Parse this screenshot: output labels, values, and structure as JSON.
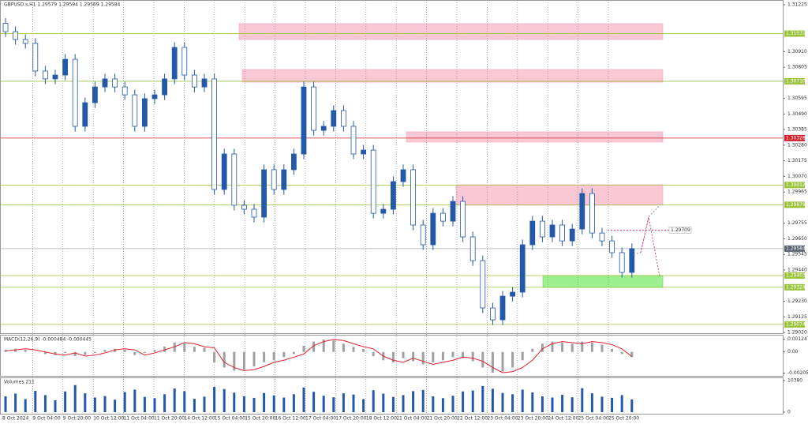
{
  "chart_data": {
    "type": "candlestick",
    "title": "GBPUSD.s,H1 1.29579 1.29594 1.29569 1.29584",
    "open": [
      1.311,
      1.31044,
      1.30991,
      1.30965,
      1.30779,
      1.30726,
      1.30752,
      1.30858,
      1.30407,
      1.30566,
      1.30672,
      1.30726,
      1.30672,
      1.30619,
      1.30407,
      1.30593,
      1.30619,
      1.30726,
      1.30938,
      1.30752,
      1.30672,
      1.30726,
      1.29982,
      1.30221,
      1.29876,
      1.29849,
      1.29796,
      1.30115,
      1.29982,
      1.30115,
      1.30221,
      1.30672,
      1.3038,
      1.30407,
      1.30513,
      1.30407,
      1.30221,
      1.30247,
      1.29822,
      1.29849,
      1.30035,
      1.30115,
      1.29743,
      1.2961,
      1.29822,
      1.29769,
      1.29902,
      1.29663,
      1.29503,
      1.29185,
      1.29105,
      1.29264,
      1.29291,
      1.2961,
      1.29769,
      1.29663,
      1.29743,
      1.29636,
      1.29716,
      1.29955,
      1.29689,
      1.29636,
      1.29557,
      1.29424
    ],
    "high": [
      1.31135,
      1.31079,
      1.31026,
      1.31,
      1.30814,
      1.30787,
      1.30893,
      1.30893,
      1.30601,
      1.30707,
      1.30761,
      1.30761,
      1.30707,
      1.30654,
      1.30628,
      1.30654,
      1.30761,
      1.30973,
      1.30973,
      1.30787,
      1.30761,
      1.30761,
      1.30256,
      1.30256,
      1.29911,
      1.29884,
      1.3015,
      1.3015,
      1.3015,
      1.30256,
      1.30707,
      1.30707,
      1.30442,
      1.30548,
      1.30548,
      1.30442,
      1.30282,
      1.30282,
      1.29884,
      1.3007,
      1.3015,
      1.3015,
      1.29778,
      1.29857,
      1.29857,
      1.29937,
      1.29937,
      1.29698,
      1.29538,
      1.2922,
      1.29299,
      1.29326,
      1.29645,
      1.29804,
      1.29804,
      1.29778,
      1.29778,
      1.29751,
      1.2999,
      1.2999,
      1.29724,
      1.29671,
      1.29592,
      1.29619
    ],
    "low": [
      1.31009,
      1.30956,
      1.3093,
      1.30744,
      1.30691,
      1.30691,
      1.30717,
      1.30372,
      1.30372,
      1.30531,
      1.30637,
      1.30637,
      1.30584,
      1.30372,
      1.30372,
      1.30558,
      1.30584,
      1.30691,
      1.30717,
      1.30637,
      1.30637,
      1.29947,
      1.29947,
      1.29841,
      1.29814,
      1.29761,
      1.29761,
      1.29947,
      1.29947,
      1.3008,
      1.30186,
      1.30345,
      1.30345,
      1.30372,
      1.30372,
      1.30186,
      1.30186,
      1.29787,
      1.29787,
      1.29814,
      1.3,
      1.29708,
      1.29575,
      1.29575,
      1.29734,
      1.29734,
      1.29628,
      1.29468,
      1.2915,
      1.2907,
      1.2907,
      1.29229,
      1.29256,
      1.29575,
      1.29628,
      1.29628,
      1.29601,
      1.29601,
      1.29681,
      1.29654,
      1.29601,
      1.29522,
      1.29389,
      1.29389
    ],
    "close": [
      1.31044,
      1.30991,
      1.30965,
      1.30779,
      1.30726,
      1.30752,
      1.30858,
      1.30407,
      1.30566,
      1.30672,
      1.30726,
      1.30672,
      1.30619,
      1.30407,
      1.30593,
      1.30619,
      1.30726,
      1.30938,
      1.30752,
      1.30672,
      1.30726,
      1.29982,
      1.30221,
      1.29876,
      1.29849,
      1.29796,
      1.30115,
      1.29982,
      1.30115,
      1.30221,
      1.30672,
      1.3038,
      1.30407,
      1.30513,
      1.30407,
      1.30221,
      1.30247,
      1.29822,
      1.29849,
      1.30035,
      1.30115,
      1.29743,
      1.2961,
      1.29822,
      1.29769,
      1.29902,
      1.29663,
      1.29503,
      1.29185,
      1.29105,
      1.29264,
      1.29291,
      1.2961,
      1.29769,
      1.29663,
      1.29743,
      1.29636,
      1.29716,
      1.29955,
      1.29689,
      1.29636,
      1.29557,
      1.29424,
      1.29584
    ],
    "color": "#2458a8",
    "ylim": [
      1.29015,
      1.31257
    ],
    "yticks": [
      {
        "value": 1.31225,
        "label": "1.31225"
      },
      {
        "value": 1.3091,
        "label": "1.30910"
      },
      {
        "value": 1.30805,
        "label": "1.30805"
      },
      {
        "value": 1.30595,
        "label": "1.30595"
      },
      {
        "value": 1.3049,
        "label": "1.30490"
      },
      {
        "value": 1.30385,
        "label": "1.30385"
      },
      {
        "value": 1.3028,
        "label": "1.30280"
      },
      {
        "value": 1.30175,
        "label": "1.30175"
      },
      {
        "value": 1.3007,
        "label": "1.30070"
      },
      {
        "value": 1.29965,
        "label": "1.29965"
      },
      {
        "value": 1.29755,
        "label": "1.29755"
      },
      {
        "value": 1.2965,
        "label": "1.29650"
      },
      {
        "value": 1.29545,
        "label": "1.29545"
      },
      {
        "value": 1.2944,
        "label": "1.29440"
      },
      {
        "value": 1.2923,
        "label": "1.29230"
      },
      {
        "value": 1.29125,
        "label": "1.29125"
      },
      {
        "value": 1.2902,
        "label": "1.29020"
      }
    ],
    "levels": [
      {
        "value": 1.31031,
        "color": "#9bc43c"
      },
      {
        "value": 1.3071,
        "label": "1.30710",
        "color": "#9bc43c"
      },
      {
        "value": 1.30328,
        "color": "#d0202a"
      },
      {
        "value": 1.30012,
        "color": "#9bc43c"
      },
      {
        "value": 1.29879,
        "color": "#9bc43c"
      },
      {
        "value": 1.29403,
        "color": "#9bc43c"
      },
      {
        "value": 1.29324,
        "color": "#9bc43c"
      },
      {
        "value": 1.29074,
        "color": "#9bc43c"
      },
      {
        "value": 1.29584,
        "color": "#5a6272"
      }
    ],
    "zones": [
      {
        "top": 1.31098,
        "bottom": 1.30991,
        "color": "#f9c8d4"
      },
      {
        "top": 1.30789,
        "bottom": 1.30704,
        "color": "#f9c8d4"
      },
      {
        "top": 1.3037,
        "bottom": 1.30301,
        "color": "#f9c8d4"
      },
      {
        "top": 1.30014,
        "bottom": 1.29876,
        "color": "#f9c8d4"
      },
      {
        "top": 1.29403,
        "bottom": 1.29323,
        "color": "#9ef08e"
      }
    ],
    "annotation": 1.29709,
    "xticks": [
      "8 Oct 2024",
      "9 Oct 04:00",
      "9 Oct 20:00",
      "10 Oct 12:00",
      "11 Oct 04:00",
      "11 Oct 20:00",
      "14 Oct 12:00",
      "15 Oct 04:00",
      "15 Oct 20:00",
      "16 Oct 12:00",
      "17 Oct 04:00",
      "17 Oct 20:00",
      "18 Oct 12:00",
      "21 Oct 04:00",
      "21 Oct 20:00",
      "22 Oct 12:00",
      "23 Oct 04:00",
      "23 Oct 20:00",
      "24 Oct 12:00",
      "25 Oct 04:00",
      "25 Oct 20:00"
    ],
    "macd": {
      "title": "MACD(12,26,9) -0.000484 -0.000445",
      "ylim": [
        -0.00215,
        0.00135
      ],
      "yticks": [
        0.001247,
        {
          "value": 0,
          "label": "0.00"
        },
        -0.002054
      ],
      "values": [
        0.0002,
        0.0003,
        0.0002,
        0,
        -0.0002,
        -0.0003,
        -0.0001,
        -0.0004,
        -0.0003,
        -0.0001,
        0.0002,
        0.0003,
        0.0002,
        -0.0003,
        -0.0001,
        0.0002,
        0.0005,
        0.0009,
        0.0008,
        0.0005,
        0.0004,
        -0.001,
        -0.0015,
        -0.0018,
        -0.0017,
        -0.0014,
        -0.001,
        -0.0008,
        -0.0005,
        -0.0002,
        0.0006,
        0.001,
        0.0012,
        0.0011,
        0.0008,
        0.0005,
        0.0003,
        -0.0004,
        -0.0008,
        -0.001,
        -0.0006,
        -0.0009,
        -0.0012,
        -0.001,
        -0.0008,
        -0.0005,
        -0.0006,
        -0.0009,
        -0.0015,
        -0.002,
        -0.0019,
        -0.0015,
        -0.0008,
        0.0003,
        0.0008,
        0.001,
        0.0009,
        0.0008,
        0.001,
        0.0009,
        0.0007,
        0.0003,
        -0.0002,
        -0.000484
      ],
      "signal": [
        0.0001,
        0.0002,
        0.0003,
        0.0002,
        0,
        -0.0002,
        -0.0003,
        -0.0001,
        -0.0004,
        -0.0003,
        -0.0001,
        0.0002,
        0.0003,
        0.0002,
        -0.0003,
        -0.0001,
        0.0002,
        0.0005,
        0.0009,
        0.0008,
        0.0005,
        0.0004,
        -0.001,
        -0.0015,
        -0.0018,
        -0.0017,
        -0.0014,
        -0.001,
        -0.0008,
        -0.0005,
        -0.0002,
        0.0006,
        0.001,
        0.0012,
        0.0011,
        0.0008,
        0.0005,
        0.0003,
        -0.0004,
        -0.0008,
        -0.001,
        -0.0006,
        -0.0009,
        -0.0012,
        -0.001,
        -0.0008,
        -0.0005,
        -0.0006,
        -0.0009,
        -0.0015,
        -0.002,
        -0.0019,
        -0.0015,
        -0.0008,
        0.0003,
        0.0008,
        0.001,
        0.0009,
        0.0008,
        0.001,
        0.0009,
        0.0007,
        0.0003,
        -0.000445
      ],
      "color": "#a0a0a0",
      "signal_color": "#e0202a"
    },
    "volumes": {
      "title": "Volumes 211",
      "ylim": [
        0,
        10380
      ],
      "yticks": [
        10380,
        0
      ],
      "color": "#2458a8",
      "values": [
        5200,
        6100,
        4300,
        7000,
        5600,
        3900,
        6800,
        8900,
        6200,
        4800,
        5300,
        4100,
        6600,
        7400,
        5000,
        4600,
        5900,
        7800,
        6900,
        4400,
        5100,
        8300,
        7600,
        6400,
        5200,
        4700,
        6300,
        5500,
        4800,
        5900,
        8100,
        6700,
        5400,
        4900,
        6200,
        5800,
        4300,
        7200,
        6100,
        5000,
        5600,
        6900,
        7300,
        5200,
        4600,
        5400,
        6800,
        7100,
        8600,
        7700,
        6300,
        5900,
        7400,
        6500,
        5200,
        4800,
        5700,
        4900,
        7900,
        6200,
        5100,
        4700,
        5600,
        4200
      ]
    }
  }
}
